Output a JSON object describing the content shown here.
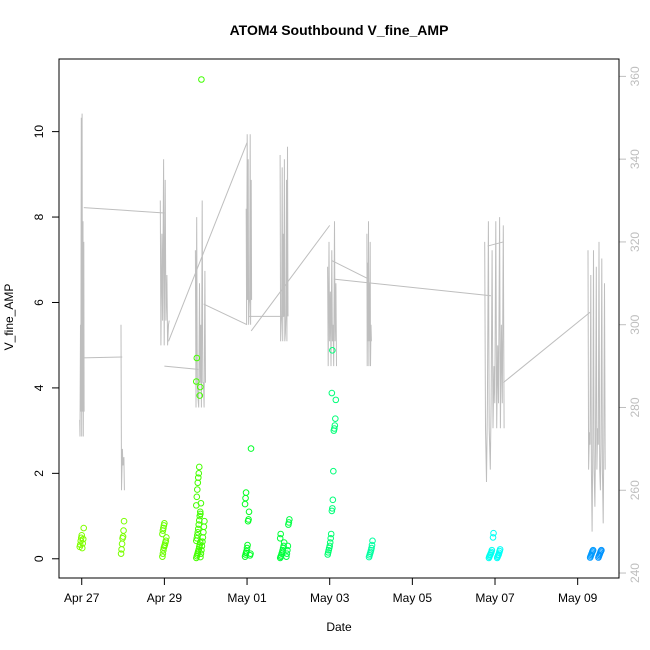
{
  "chart_data": {
    "type": "scatter",
    "title": "ATOM4 Southbound V_fine_AMP",
    "xlabel": "Date",
    "ylabel": "V_fine_AMP",
    "x_unit": "days since Apr 27",
    "xlim": [
      -0.55,
      13.0
    ],
    "ylim": [
      -0.45,
      11.7
    ],
    "y2lim": [
      238.8,
      364.2
    ],
    "x_ticks": [
      {
        "value": 0,
        "label": "Apr 27"
      },
      {
        "value": 2,
        "label": "Apr 29"
      },
      {
        "value": 4,
        "label": "May 01"
      },
      {
        "value": 6,
        "label": "May 03"
      },
      {
        "value": 8,
        "label": "May 05"
      },
      {
        "value": 10,
        "label": "May 07"
      },
      {
        "value": 12,
        "label": "May 09"
      }
    ],
    "y_ticks": [
      {
        "value": 0,
        "label": "0"
      },
      {
        "value": 2,
        "label": "2"
      },
      {
        "value": 4,
        "label": "4"
      },
      {
        "value": 6,
        "label": "6"
      },
      {
        "value": 8,
        "label": "8"
      },
      {
        "value": 10,
        "label": "10"
      }
    ],
    "y2_ticks": [
      {
        "value": 240,
        "label": "240"
      },
      {
        "value": 260,
        "label": "260"
      },
      {
        "value": 280,
        "label": "280"
      },
      {
        "value": 300,
        "label": "300"
      },
      {
        "value": 320,
        "label": "320"
      },
      {
        "value": 340,
        "label": "340"
      },
      {
        "value": 360,
        "label": "360"
      }
    ],
    "line_color": "#bebebe",
    "points": [
      {
        "day": 0.0,
        "values": [
          0.28,
          0.33,
          0.42,
          0.49,
          0.55,
          0.25,
          0.36,
          0.46,
          0.72
        ],
        "color": "#80ff00"
      },
      {
        "day": 1.0,
        "values": [
          0.12,
          0.22,
          0.35,
          0.48,
          0.52,
          0.66,
          0.88
        ],
        "color": "#7aff00"
      },
      {
        "day": 2.0,
        "values": [
          0.05,
          0.12,
          0.2,
          0.26,
          0.3,
          0.33,
          0.38,
          0.42,
          0.5,
          0.58,
          0.66,
          0.72,
          0.78,
          0.83
        ],
        "color": "#6bff00"
      },
      {
        "day": 2.82,
        "values": [
          0.02,
          0.06,
          0.1,
          0.14,
          0.18,
          0.22,
          0.28,
          0.33,
          0.38,
          0.42,
          0.48,
          0.55,
          0.62,
          0.7,
          0.8,
          0.9,
          1.0,
          1.1,
          1.25,
          1.45,
          1.62,
          1.78,
          1.9,
          2.0,
          2.15,
          3.82,
          4.02,
          4.15,
          4.7
        ],
        "color": "#45ff00"
      },
      {
        "day": 2.92,
        "values": [
          0.04,
          0.12,
          0.2,
          0.3,
          0.4,
          0.5,
          0.62,
          0.75,
          0.88,
          1.05,
          1.3,
          11.22
        ],
        "color": "#40ff00"
      },
      {
        "day": 4.0,
        "values": [
          0.05,
          0.1,
          0.14,
          0.18,
          0.25,
          0.32,
          0.88,
          0.92,
          1.1,
          1.28,
          1.42,
          1.55
        ],
        "color": "#00ff20"
      },
      {
        "day": 4.12,
        "values": [
          0.08,
          0.12,
          2.58
        ],
        "color": "#00ff28"
      },
      {
        "day": 4.85,
        "values": [
          0.02,
          0.05,
          0.08,
          0.12,
          0.16,
          0.2,
          0.25,
          0.3,
          0.38,
          0.48,
          0.58
        ],
        "color": "#00ff3a"
      },
      {
        "day": 5.0,
        "values": [
          0.05,
          0.12,
          0.2,
          0.3,
          0.8,
          0.85,
          0.92
        ],
        "color": "#00ff44"
      },
      {
        "day": 6.0,
        "values": [
          0.1,
          0.15,
          0.2,
          0.25,
          0.3,
          0.38,
          0.48,
          0.58
        ],
        "color": "#00ff70"
      },
      {
        "day": 6.1,
        "values": [
          1.12,
          1.18,
          1.38,
          2.05,
          3.0,
          3.05,
          3.12,
          3.28,
          3.72,
          3.88,
          4.88
        ],
        "color": "#00ff78"
      },
      {
        "day": 7.0,
        "values": [
          0.04,
          0.08,
          0.12,
          0.16,
          0.2,
          0.25,
          0.32,
          0.42
        ],
        "color": "#00ffa0"
      },
      {
        "day": 9.9,
        "values": [
          0.02,
          0.05,
          0.08,
          0.1,
          0.13,
          0.16,
          0.2
        ],
        "color": "#00fff0"
      },
      {
        "day": 10.1,
        "values": [
          0.02,
          0.05,
          0.08,
          0.1,
          0.14,
          0.18,
          0.22
        ],
        "color": "#00fff8"
      },
      {
        "day": 10.0,
        "values": [
          0.5,
          0.6
        ],
        "color": "#00fff4"
      },
      {
        "day": 12.35,
        "values": [
          0.03,
          0.06,
          0.09,
          0.12,
          0.15,
          0.18,
          0.2
        ],
        "color": "#009aff"
      },
      {
        "day": 12.55,
        "values": [
          0.03,
          0.06,
          0.09,
          0.12,
          0.15,
          0.18,
          0.2
        ],
        "color": "#0094ff"
      }
    ],
    "line_clusters": [
      {
        "start": -0.05,
        "end": 0.05,
        "base": 273,
        "values": [
          277,
          300,
          350,
          351,
          325,
          320
        ]
      },
      {
        "start": 0.95,
        "end": 1.02,
        "base": 260,
        "values": [
          300,
          270,
          268
        ]
      },
      {
        "start": 1.9,
        "end": 2.1,
        "base": 295,
        "values": [
          330,
          322,
          340,
          335,
          312,
          300
        ]
      },
      {
        "start": 2.75,
        "end": 2.98,
        "base": 280,
        "values": [
          318,
          326,
          282,
          310,
          300,
          330,
          286,
          313
        ]
      },
      {
        "start": 3.98,
        "end": 4.1,
        "base": 300,
        "values": [
          328,
          346,
          340,
          305,
          346,
          335
        ]
      },
      {
        "start": 4.8,
        "end": 4.98,
        "base": 296,
        "values": [
          341,
          300,
          338,
          322,
          340,
          298,
          335,
          343
        ]
      },
      {
        "start": 5.95,
        "end": 6.15,
        "base": 290,
        "values": [
          314,
          320,
          308,
          318,
          300,
          325,
          310
        ]
      },
      {
        "start": 6.9,
        "end": 7.0,
        "base": 290,
        "values": [
          322,
          315,
          325,
          310,
          320,
          300
        ]
      },
      {
        "start": 9.75,
        "end": 10.2,
        "base": 275,
        "values": [
          320,
          262,
          325,
          265,
          318,
          290,
          325,
          295,
          326,
          300,
          324
        ]
      },
      {
        "start": 12.25,
        "end": 12.65,
        "base": 265,
        "values": [
          318,
          274,
          312,
          250,
          318,
          256,
          314,
          275,
          320,
          260,
          316,
          252,
          310
        ]
      }
    ],
    "line_connectors": [
      [
        0.05,
        328.3,
        2.0,
        327.0
      ],
      [
        0.02,
        292.0,
        0.98,
        292.2
      ],
      [
        2.0,
        290.0,
        2.82,
        289.2
      ],
      [
        2.1,
        296.0,
        4.0,
        344.0
      ],
      [
        2.95,
        305.0,
        4.0,
        300.0
      ],
      [
        4.05,
        302.0,
        4.9,
        302.0
      ],
      [
        4.1,
        298.5,
        6.0,
        324.0
      ],
      [
        6.05,
        315.5,
        6.95,
        311.0
      ],
      [
        6.1,
        311.0,
        9.9,
        307.0
      ],
      [
        9.82,
        319.0,
        10.2,
        320.0
      ],
      [
        10.2,
        286.0,
        12.3,
        303.0
      ]
    ]
  }
}
